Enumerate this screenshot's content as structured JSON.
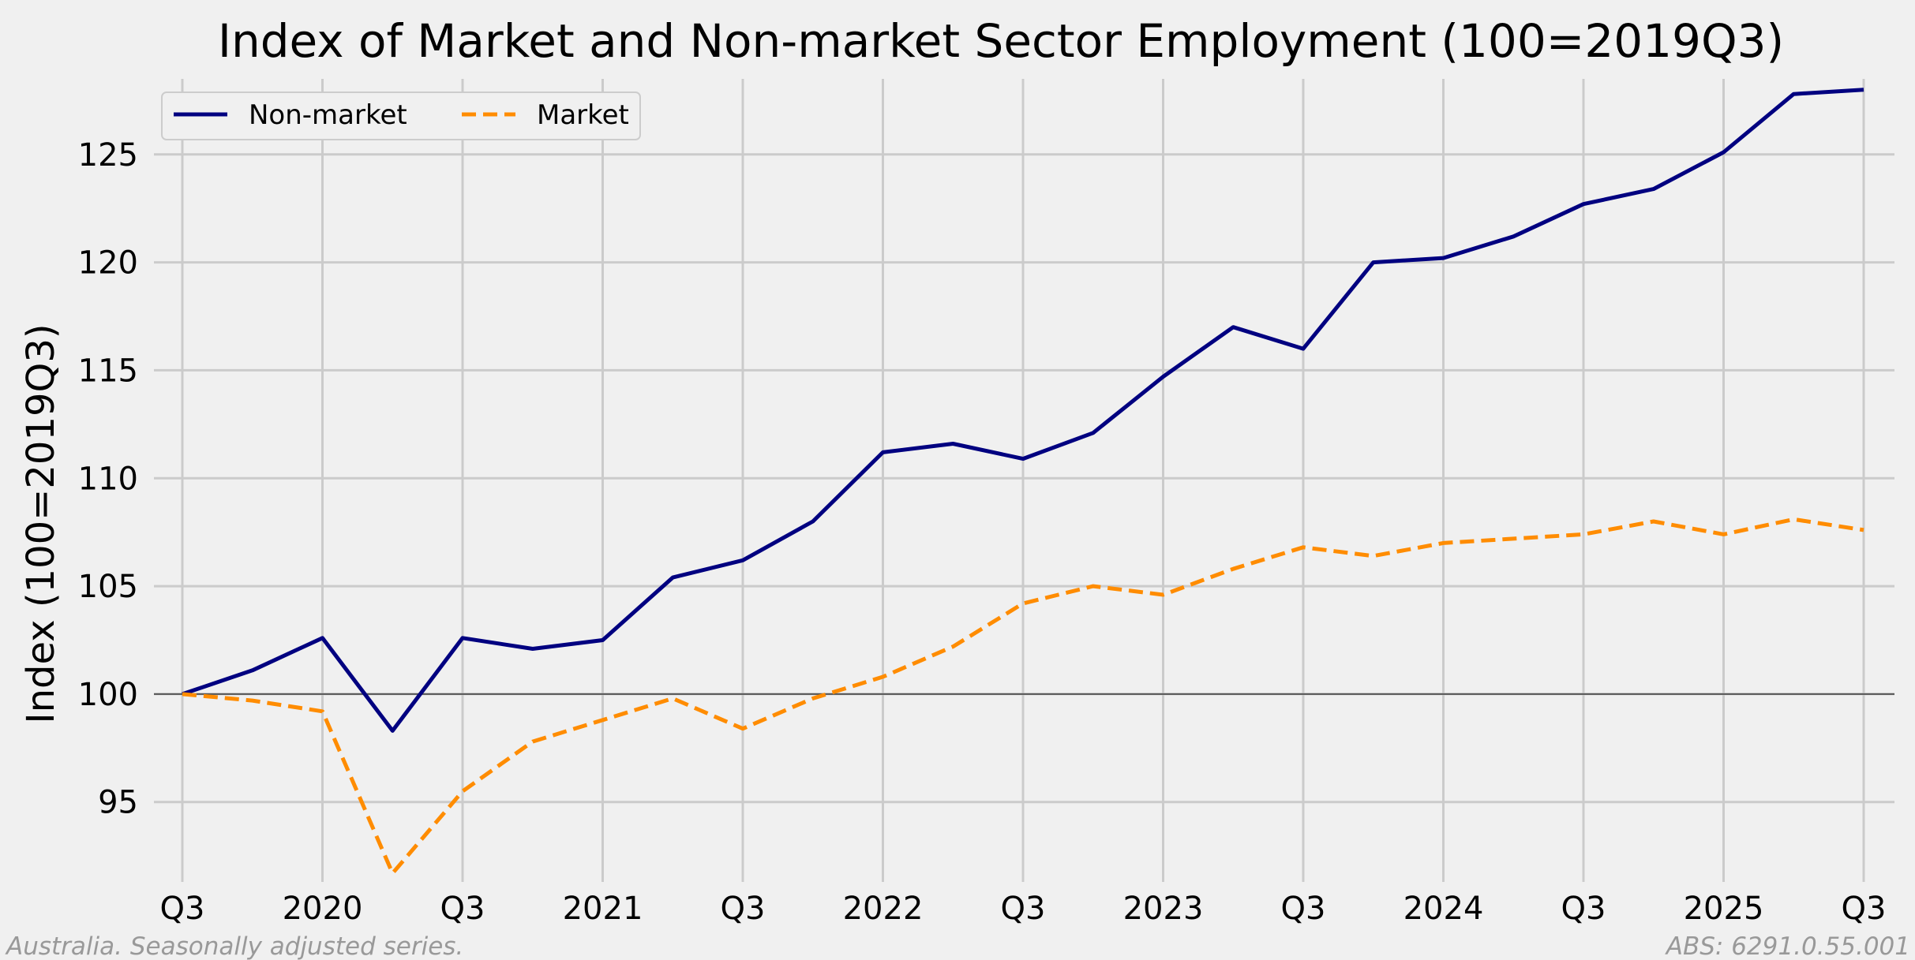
{
  "chart_data": {
    "type": "line",
    "title": "Index of Market and Non-market Sector Employment (100=2019Q3)",
    "ylabel": "Index (100=2019Q3)",
    "xlabel": "",
    "x": [
      "2019Q3",
      "2019Q4",
      "2020Q1",
      "2020Q2",
      "2020Q3",
      "2020Q4",
      "2021Q1",
      "2021Q2",
      "2021Q3",
      "2021Q4",
      "2022Q1",
      "2022Q2",
      "2022Q3",
      "2022Q4",
      "2023Q1",
      "2023Q2",
      "2023Q3",
      "2023Q4",
      "2024Q1",
      "2024Q2",
      "2024Q3",
      "2024Q4",
      "2025Q1",
      "2025Q2",
      "2025Q3"
    ],
    "x_tick_labels": [
      "Q3",
      "2020",
      "Q3",
      "2021",
      "Q3",
      "2022",
      "Q3",
      "2023",
      "Q3",
      "2024",
      "Q3",
      "2025",
      "Q3"
    ],
    "yticks": [
      95,
      100,
      105,
      110,
      115,
      120,
      125
    ],
    "ylim": [
      91.3,
      128.5
    ],
    "reference_line": 100,
    "grid": true,
    "legend_position": "top-left",
    "series": [
      {
        "name": "Non-market",
        "color": "#000080",
        "style": "solid",
        "values": [
          100.0,
          101.1,
          102.6,
          98.3,
          102.6,
          102.1,
          102.5,
          105.4,
          106.2,
          108.0,
          111.2,
          111.6,
          110.9,
          112.1,
          114.7,
          117.0,
          116.0,
          120.0,
          120.2,
          121.2,
          122.7,
          123.4,
          125.1,
          127.8,
          128.0
        ]
      },
      {
        "name": "Market",
        "color": "#ff8c00",
        "style": "dashed",
        "values": [
          100.0,
          99.7,
          99.2,
          91.7,
          95.5,
          97.8,
          98.8,
          99.8,
          98.4,
          99.8,
          100.8,
          102.2,
          104.2,
          105.0,
          104.6,
          105.8,
          106.8,
          106.4,
          107.0,
          107.2,
          107.4,
          108.0,
          107.4,
          108.1,
          107.6
        ]
      }
    ]
  },
  "footer": {
    "left": "Australia. Seasonally adjusted series.",
    "right": "ABS: 6291.0.55.001"
  }
}
